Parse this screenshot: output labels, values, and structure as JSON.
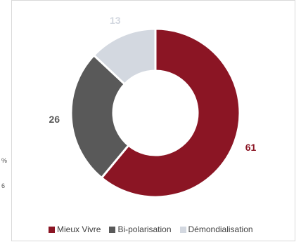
{
  "chart_data": {
    "type": "pie",
    "variant": "donut",
    "categories": [
      "Mieux Vivre",
      "Bi-polarisation",
      "Démondialisation"
    ],
    "values": [
      61,
      26,
      13
    ],
    "colors": [
      "#8b1524",
      "#595959",
      "#d3d8e0"
    ],
    "label_colors": [
      "#8b1524",
      "#595959",
      "#d3d8e0"
    ],
    "slice_labels": [
      "61",
      "26",
      "13"
    ],
    "start_angle_deg": 0,
    "direction": "clockwise",
    "legend_position": "bottom",
    "title": ""
  },
  "margin_fragments": [
    "%",
    "6"
  ]
}
